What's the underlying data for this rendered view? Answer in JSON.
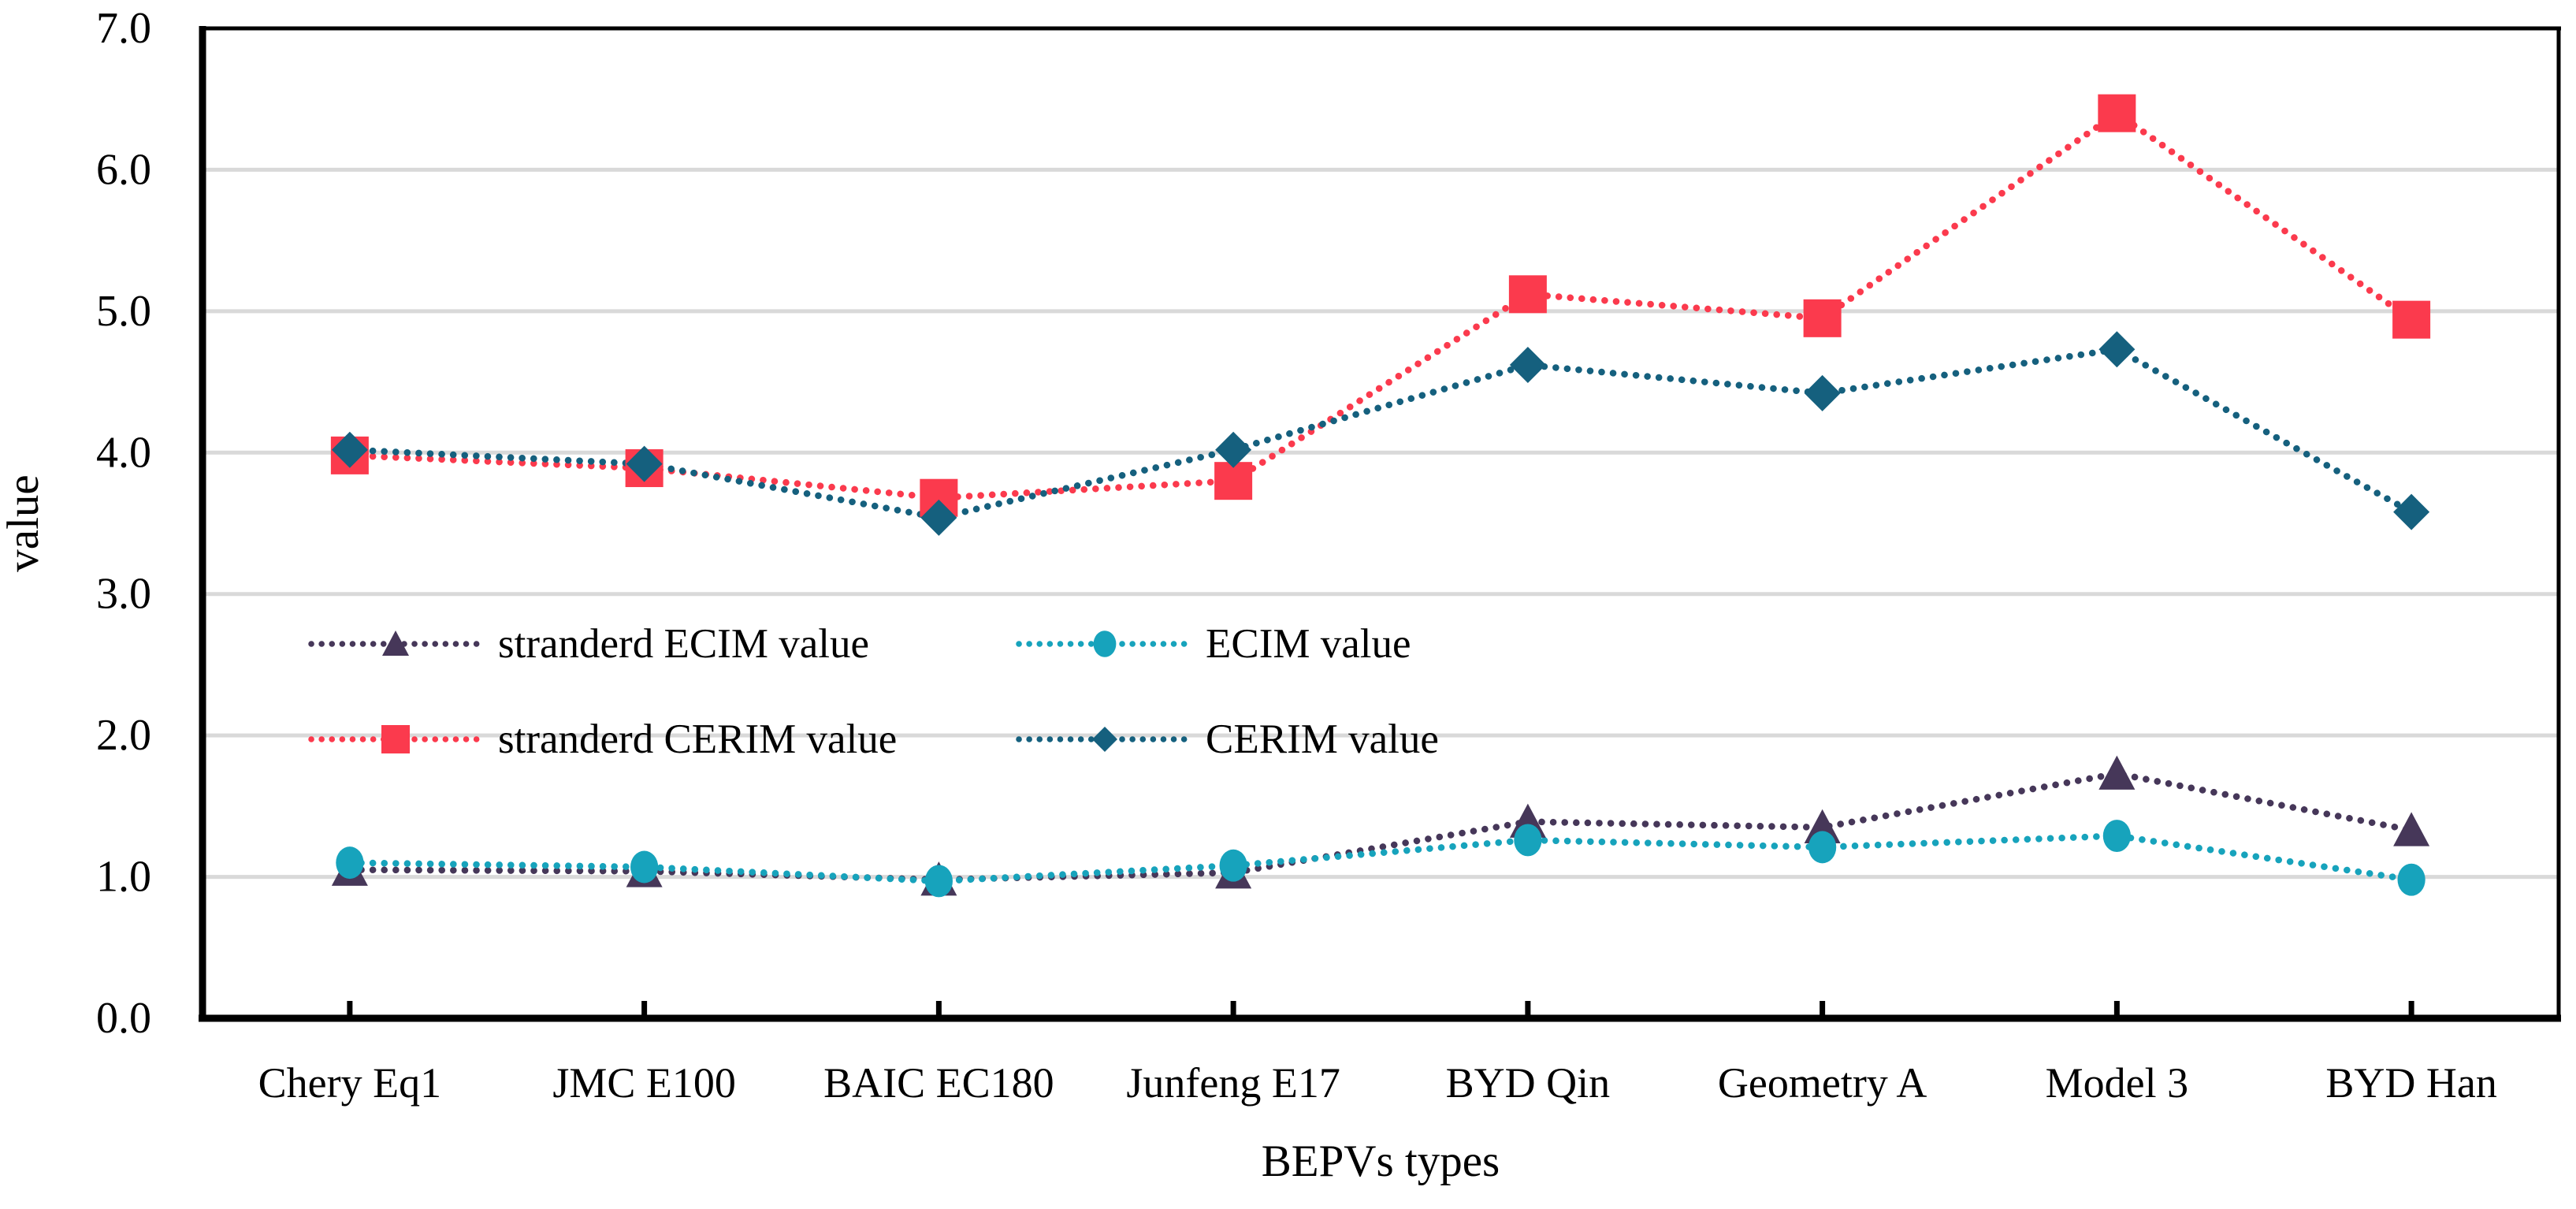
{
  "chart_data": {
    "type": "line",
    "title": "",
    "xlabel": "BEPVs types",
    "ylabel": "value",
    "categories": [
      "Chery Eq1",
      "JMC E100",
      "BAIC EC180",
      "Junfeng E17",
      "BYD Qin",
      "Geometry A",
      "Model 3",
      "BYD Han"
    ],
    "series": [
      {
        "name": "stranderd ECIM value",
        "marker": "triangle",
        "color": "#463759",
        "values": [
          1.05,
          1.04,
          0.98,
          1.03,
          1.39,
          1.35,
          1.73,
          1.33
        ]
      },
      {
        "name": "ECIM value",
        "marker": "circle",
        "color": "#17A3BC",
        "values": [
          1.1,
          1.07,
          0.97,
          1.08,
          1.26,
          1.21,
          1.29,
          0.98
        ]
      },
      {
        "name": "stranderd CERIM value",
        "marker": "square",
        "color": "#FB3A4D",
        "values": [
          3.98,
          3.89,
          3.68,
          3.8,
          5.12,
          4.95,
          6.4,
          4.94
        ]
      },
      {
        "name": "CERIM value",
        "marker": "diamond",
        "color": "#15607E",
        "values": [
          4.02,
          3.92,
          3.54,
          4.02,
          4.62,
          4.42,
          4.73,
          3.58
        ]
      }
    ],
    "ylim": [
      0.0,
      7.0
    ],
    "ytick_step": 1.0,
    "ytick_labels": [
      "0.0",
      "1.0",
      "2.0",
      "3.0",
      "4.0",
      "5.0",
      "6.0",
      "7.0"
    ],
    "grid": "horizontal",
    "gridline_color": "#D9D9D9",
    "axis_color": "#000000",
    "legend_position": "inside-left-middle",
    "legend_rows": [
      [
        "stranderd ECIM value",
        "ECIM value"
      ],
      [
        "stranderd CERIM value",
        "CERIM value"
      ]
    ]
  }
}
